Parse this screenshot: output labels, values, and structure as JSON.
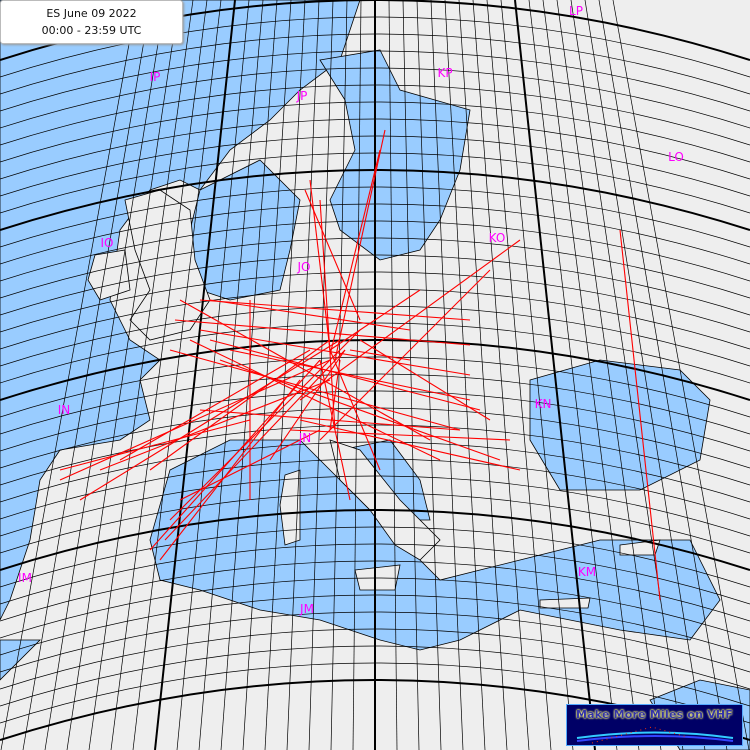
{
  "header": {
    "title": "ES June 09 2022",
    "time_range": "00:00 - 23:59 UTC"
  },
  "logo": {
    "text": "Make More Miles on VHF"
  },
  "map": {
    "grid_system": "Maidenhead locator",
    "fields": [
      {
        "label": "LP"
      },
      {
        "label": "IP"
      },
      {
        "label": "JP"
      },
      {
        "label": "KP"
      },
      {
        "label": "LO"
      },
      {
        "label": "IO"
      },
      {
        "label": "KO"
      },
      {
        "label": "JO"
      },
      {
        "label": "IN"
      },
      {
        "label": "KN"
      },
      {
        "label": "JN"
      },
      {
        "label": "IM"
      },
      {
        "label": "KM"
      },
      {
        "label": "JM"
      }
    ],
    "colors": {
      "land": "#eeeeee",
      "sea": "#99ccff",
      "grid": "#000000",
      "paths": "#ff0000",
      "field_label": "#ff00ff",
      "logo_bg": "#000066"
    }
  }
}
